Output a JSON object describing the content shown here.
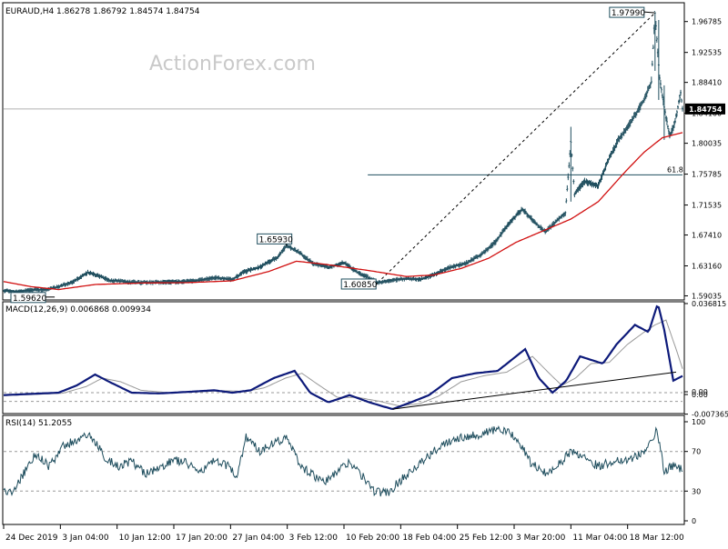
{
  "chart_data": {
    "type": "candlestick",
    "symbol_line": "EURAUD,H4  1.86278 1.86792 1.84574 1.84754",
    "watermark": "ActionForex.com",
    "colors": {
      "price": "#1f4e5e",
      "moving_average": "#d11010",
      "macd_line": "#0d1a7a",
      "signal_line": "#999999",
      "trendline": "#000000",
      "fib_line": "#1f4e5e",
      "grid_dashed": "#999999",
      "axis": "#000000",
      "current_price_bg": "#000000",
      "current_price_fg": "#ffffff"
    },
    "x_axis": {
      "labels": [
        "24 Dec 2019",
        "3 Jan 04:00",
        "10 Jan 12:00",
        "17 Jan 20:00",
        "27 Jan 04:00",
        "3 Feb 12:00",
        "10 Feb 20:00",
        "18 Feb 04:00",
        "25 Feb 12:00",
        "3 Mar 20:00",
        "11 Mar 04:00",
        "18 Mar 12:00"
      ],
      "label_positions": [
        0,
        62,
        124,
        186,
        248,
        310,
        372,
        434,
        496,
        558,
        620,
        682
      ]
    },
    "price_panel": {
      "y_range": [
        1.5872,
        1.99
      ],
      "tick_labels": [
        "1.96785",
        "1.92535",
        "1.88410",
        "1.84160",
        "1.80035",
        "1.75785",
        "1.71535",
        "1.67410",
        "1.63160",
        "1.59035"
      ],
      "tick_values": [
        1.96785,
        1.92535,
        1.8841,
        1.8416,
        1.80035,
        1.75785,
        1.71535,
        1.6741,
        1.6316,
        1.59035
      ],
      "current_price_label": "1.84754",
      "current_price": 1.84754,
      "fib_label": "61.8",
      "fib_level": 1.7568,
      "fib_start_bar": 398,
      "annotations": [
        {
          "label": "1.59620",
          "bar": 16,
          "value": 1.5962
        },
        {
          "label": "1.65930",
          "bar": 309,
          "value": 1.6593
        },
        {
          "label": "1.60850",
          "bar": 409,
          "value": 1.6085
        },
        {
          "label": "1.97990",
          "bar": 712,
          "value": 1.9799
        }
      ],
      "trendline": {
        "from_bar": 409,
        "from_value": 1.6085,
        "to_bar": 712,
        "to_value": 1.9799
      },
      "close_anchors": [
        [
          0,
          1.5972
        ],
        [
          8,
          1.5968
        ],
        [
          16,
          1.5962
        ],
        [
          30,
          1.5985
        ],
        [
          45,
          1.599
        ],
        [
          60,
          1.603
        ],
        [
          75,
          1.609
        ],
        [
          92,
          1.6225
        ],
        [
          102,
          1.619
        ],
        [
          115,
          1.612
        ],
        [
          130,
          1.61
        ],
        [
          150,
          1.6085
        ],
        [
          170,
          1.609
        ],
        [
          190,
          1.6095
        ],
        [
          210,
          1.611
        ],
        [
          230,
          1.6155
        ],
        [
          250,
          1.613
        ],
        [
          262,
          1.623
        ],
        [
          280,
          1.63
        ],
        [
          300,
          1.644
        ],
        [
          309,
          1.6593
        ],
        [
          322,
          1.651
        ],
        [
          338,
          1.635
        ],
        [
          355,
          1.63
        ],
        [
          372,
          1.636
        ],
        [
          386,
          1.623
        ],
        [
          398,
          1.616
        ],
        [
          409,
          1.6085
        ],
        [
          425,
          1.612
        ],
        [
          440,
          1.614
        ],
        [
          455,
          1.613
        ],
        [
          470,
          1.619
        ],
        [
          486,
          1.629
        ],
        [
          505,
          1.635
        ],
        [
          522,
          1.647
        ],
        [
          538,
          1.665
        ],
        [
          552,
          1.69
        ],
        [
          567,
          1.71
        ],
        [
          580,
          1.692
        ],
        [
          592,
          1.678
        ],
        [
          604,
          1.693
        ],
        [
          614,
          1.705
        ],
        [
          620,
          1.802
        ],
        [
          624,
          1.73
        ],
        [
          635,
          1.748
        ],
        [
          650,
          1.742
        ],
        [
          660,
          1.775
        ],
        [
          672,
          1.805
        ],
        [
          686,
          1.83
        ],
        [
          700,
          1.86
        ],
        [
          708,
          1.885
        ],
        [
          712,
          1.9799
        ],
        [
          717,
          1.89
        ],
        [
          722,
          1.85
        ],
        [
          728,
          1.81
        ],
        [
          734,
          1.83
        ],
        [
          740,
          1.87
        ],
        [
          742,
          1.8475
        ]
      ],
      "ma_anchors": [
        [
          0,
          1.61
        ],
        [
          30,
          1.603
        ],
        [
          60,
          1.599
        ],
        [
          100,
          1.606
        ],
        [
          150,
          1.608
        ],
        [
          200,
          1.6085
        ],
        [
          250,
          1.611
        ],
        [
          290,
          1.624
        ],
        [
          320,
          1.638
        ],
        [
          350,
          1.634
        ],
        [
          400,
          1.625
        ],
        [
          440,
          1.617
        ],
        [
          470,
          1.619
        ],
        [
          500,
          1.628
        ],
        [
          530,
          1.642
        ],
        [
          560,
          1.664
        ],
        [
          590,
          1.68
        ],
        [
          620,
          1.696
        ],
        [
          650,
          1.72
        ],
        [
          680,
          1.762
        ],
        [
          700,
          1.788
        ],
        [
          720,
          1.808
        ],
        [
          742,
          1.815
        ]
      ]
    },
    "macd_panel": {
      "title": "MACD(12,26,9) 0.006868 0.009934",
      "y_range": [
        -0.0075,
        0.0368
      ],
      "tick_labels": [
        "0.036815",
        "0.00",
        "0.00",
        "-0.007365"
      ],
      "tick_values": [
        0.036815,
        0.0,
        -0.0005,
        -0.007365
      ],
      "dashed_levels": [
        0.0,
        -0.0036
      ],
      "macd_anchors": [
        [
          0,
          -0.001
        ],
        [
          30,
          -0.0005
        ],
        [
          60,
          0.0
        ],
        [
          80,
          0.003
        ],
        [
          100,
          0.0075
        ],
        [
          118,
          0.004
        ],
        [
          140,
          0.0
        ],
        [
          170,
          -0.0003
        ],
        [
          200,
          0.0003
        ],
        [
          230,
          0.001
        ],
        [
          250,
          0.0
        ],
        [
          270,
          0.001
        ],
        [
          295,
          0.006
        ],
        [
          318,
          0.009
        ],
        [
          335,
          0.0
        ],
        [
          355,
          -0.004
        ],
        [
          378,
          -0.001
        ],
        [
          400,
          -0.004
        ],
        [
          425,
          -0.0068
        ],
        [
          445,
          -0.004
        ],
        [
          465,
          -0.001
        ],
        [
          490,
          0.006
        ],
        [
          515,
          0.008
        ],
        [
          540,
          0.009
        ],
        [
          570,
          0.018
        ],
        [
          585,
          0.006
        ],
        [
          600,
          0.0
        ],
        [
          615,
          0.005
        ],
        [
          630,
          0.015
        ],
        [
          655,
          0.012
        ],
        [
          670,
          0.02
        ],
        [
          690,
          0.028
        ],
        [
          705,
          0.025
        ],
        [
          715,
          0.0368
        ],
        [
          722,
          0.026
        ],
        [
          732,
          0.005
        ],
        [
          742,
          0.0069
        ]
      ],
      "signal_anchors": [
        [
          0,
          -0.0012
        ],
        [
          35,
          -0.0007
        ],
        [
          65,
          -0.0002
        ],
        [
          90,
          0.0025
        ],
        [
          108,
          0.006
        ],
        [
          128,
          0.0045
        ],
        [
          150,
          0.001
        ],
        [
          180,
          0.0
        ],
        [
          210,
          0.0003
        ],
        [
          240,
          0.0008
        ],
        [
          265,
          0.0005
        ],
        [
          285,
          0.002
        ],
        [
          308,
          0.006
        ],
        [
          326,
          0.008
        ],
        [
          345,
          0.003
        ],
        [
          365,
          -0.002
        ],
        [
          388,
          -0.002
        ],
        [
          410,
          -0.0035
        ],
        [
          433,
          -0.0055
        ],
        [
          455,
          -0.0045
        ],
        [
          475,
          -0.0015
        ],
        [
          500,
          0.0045
        ],
        [
          525,
          0.007
        ],
        [
          550,
          0.0085
        ],
        [
          578,
          0.015
        ],
        [
          595,
          0.0085
        ],
        [
          610,
          0.003
        ],
        [
          625,
          0.006
        ],
        [
          642,
          0.012
        ],
        [
          662,
          0.0125
        ],
        [
          682,
          0.02
        ],
        [
          700,
          0.025
        ],
        [
          712,
          0.028
        ],
        [
          724,
          0.03
        ],
        [
          735,
          0.018
        ],
        [
          742,
          0.0099
        ]
      ],
      "trendline": {
        "from_bar": 425,
        "from_value": -0.0068,
        "to_bar": 735,
        "to_value": 0.0085
      }
    },
    "rsi_panel": {
      "title": "RSI(14) 51.2055",
      "y_range": [
        0,
        100
      ],
      "tick_labels": [
        "100",
        "70",
        "30",
        "0"
      ],
      "tick_values": [
        100,
        70,
        30,
        0
      ],
      "dashed_levels": [
        70,
        30
      ],
      "rsi_anchors": [
        [
          0,
          30
        ],
        [
          10,
          28
        ],
        [
          20,
          45
        ],
        [
          35,
          68
        ],
        [
          50,
          55
        ],
        [
          65,
          75
        ],
        [
          80,
          82
        ],
        [
          95,
          86
        ],
        [
          110,
          65
        ],
        [
          125,
          55
        ],
        [
          140,
          60
        ],
        [
          155,
          48
        ],
        [
          170,
          52
        ],
        [
          185,
          62
        ],
        [
          200,
          58
        ],
        [
          215,
          50
        ],
        [
          230,
          60
        ],
        [
          245,
          55
        ],
        [
          255,
          45
        ],
        [
          265,
          85
        ],
        [
          280,
          70
        ],
        [
          295,
          80
        ],
        [
          310,
          83
        ],
        [
          325,
          55
        ],
        [
          340,
          45
        ],
        [
          350,
          38
        ],
        [
          365,
          50
        ],
        [
          378,
          60
        ],
        [
          392,
          45
        ],
        [
          405,
          30
        ],
        [
          420,
          28
        ],
        [
          435,
          42
        ],
        [
          450,
          55
        ],
        [
          465,
          65
        ],
        [
          480,
          78
        ],
        [
          495,
          84
        ],
        [
          510,
          86
        ],
        [
          525,
          88
        ],
        [
          540,
          93
        ],
        [
          560,
          85
        ],
        [
          575,
          60
        ],
        [
          590,
          48
        ],
        [
          605,
          55
        ],
        [
          620,
          70
        ],
        [
          635,
          65
        ],
        [
          650,
          55
        ],
        [
          665,
          60
        ],
        [
          680,
          62
        ],
        [
          695,
          66
        ],
        [
          710,
          82
        ],
        [
          714,
          92
        ],
        [
          722,
          50
        ],
        [
          730,
          56
        ],
        [
          742,
          51
        ]
      ]
    }
  }
}
